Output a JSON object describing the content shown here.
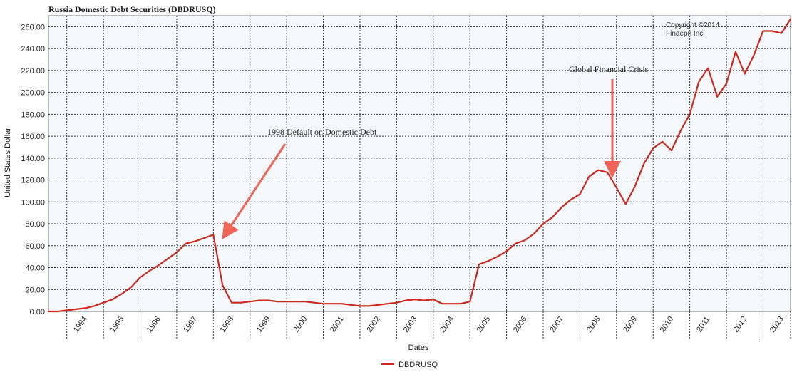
{
  "chart_data": {
    "type": "line",
    "title": "Russia Domestic Debt Securities (DBDRUSQ)",
    "xlabel": "Dates",
    "ylabel": "United States Dollar",
    "ylim": [
      0,
      270
    ],
    "y_ticks": [
      "0.00",
      "20.00",
      "40.00",
      "60.00",
      "80.00",
      "100.00",
      "120.00",
      "140.00",
      "160.00",
      "180.00",
      "200.00",
      "220.00",
      "240.00",
      "260.00"
    ],
    "x_tick_labels": [
      "1994",
      "1995",
      "1996",
      "1997",
      "1998",
      "1999",
      "2000",
      "2001",
      "2002",
      "2003",
      "2004",
      "2005",
      "2006",
      "2007",
      "2008",
      "2009",
      "2010",
      "2011",
      "2012",
      "2013"
    ],
    "x_range": [
      1993.5,
      2013.75
    ],
    "grid": true,
    "legend_position": "bottom",
    "series": [
      {
        "name": "DBDRUSQ",
        "color": "#cc2a1f",
        "x": [
          1993.5,
          1993.75,
          1994.0,
          1994.25,
          1994.5,
          1994.75,
          1995.0,
          1995.25,
          1995.5,
          1995.75,
          1996.0,
          1996.25,
          1996.5,
          1996.75,
          1997.0,
          1997.25,
          1997.5,
          1997.75,
          1998.0,
          1998.25,
          1998.5,
          1998.75,
          1999.0,
          1999.25,
          1999.5,
          1999.75,
          2000.0,
          2000.25,
          2000.5,
          2000.75,
          2001.0,
          2001.25,
          2001.5,
          2001.75,
          2002.0,
          2002.25,
          2002.5,
          2002.75,
          2003.0,
          2003.25,
          2003.5,
          2003.75,
          2004.0,
          2004.25,
          2004.5,
          2004.75,
          2005.0,
          2005.25,
          2005.5,
          2005.75,
          2006.0,
          2006.25,
          2006.5,
          2006.75,
          2007.0,
          2007.25,
          2007.5,
          2007.75,
          2008.0,
          2008.25,
          2008.5,
          2008.75,
          2009.0,
          2009.25,
          2009.5,
          2009.75,
          2010.0,
          2010.25,
          2010.5,
          2010.75,
          2011.0,
          2011.25,
          2011.5,
          2011.75,
          2012.0,
          2012.25,
          2012.5,
          2012.75,
          2013.0,
          2013.25,
          2013.5,
          2013.75
        ],
        "values": [
          0,
          0,
          1,
          2,
          3,
          5,
          8,
          11,
          16,
          22,
          31,
          37,
          42,
          48,
          54,
          62,
          64,
          67,
          70,
          24,
          8,
          8,
          9,
          10,
          10,
          9,
          9,
          9,
          9,
          8,
          7,
          7,
          7,
          6,
          5,
          5,
          6,
          7,
          8,
          10,
          11,
          10,
          11,
          7,
          7,
          7,
          9,
          43,
          46,
          50,
          55,
          62,
          65,
          71,
          80,
          86,
          95,
          102,
          107,
          123,
          129,
          127,
          113,
          98,
          114,
          135,
          149,
          155,
          147,
          165,
          180,
          210,
          222,
          196,
          208,
          237,
          217,
          234,
          256,
          256,
          254,
          267
        ]
      }
    ],
    "annotations": [
      {
        "text": "1998 Default on Domestic Debt"
      },
      {
        "text": "Global Financial Crisis"
      }
    ],
    "copyright": [
      "Copyright ©2014",
      "Finaepn Inc."
    ]
  }
}
